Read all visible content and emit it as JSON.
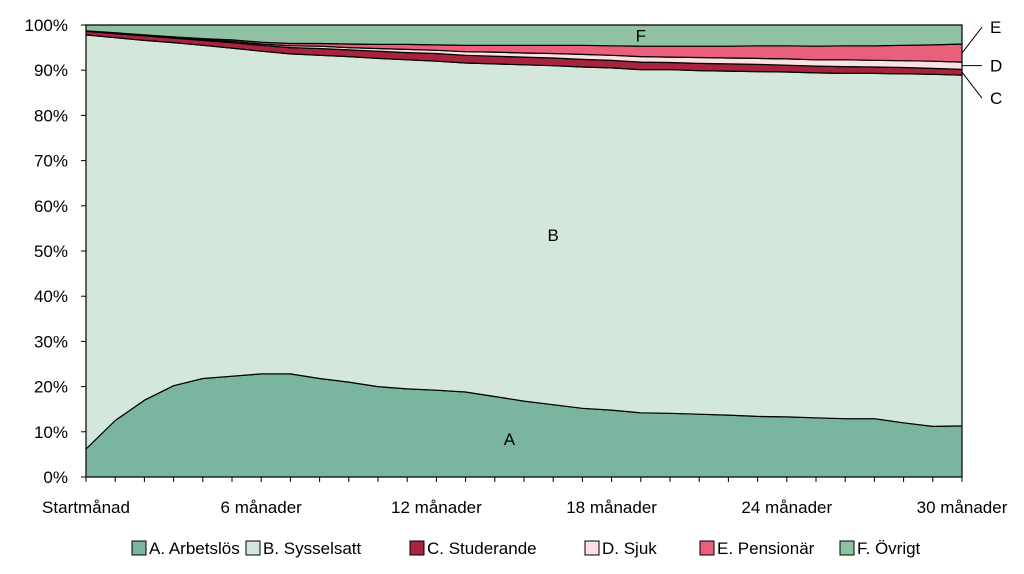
{
  "chart_data": {
    "type": "area",
    "stacked": true,
    "percent": true,
    "title": "",
    "xlabel": "",
    "ylabel": "",
    "ylim": [
      0,
      100
    ],
    "y_ticks": [
      "0%",
      "10%",
      "20%",
      "30%",
      "40%",
      "50%",
      "60%",
      "70%",
      "80%",
      "90%",
      "100%"
    ],
    "x": [
      0,
      1,
      2,
      3,
      4,
      5,
      6,
      7,
      8,
      9,
      10,
      11,
      12,
      13,
      14,
      15,
      16,
      17,
      18,
      19,
      20,
      21,
      22,
      23,
      24,
      25,
      26,
      27,
      28,
      29,
      30
    ],
    "x_tick_labels": [
      {
        "x": 0,
        "label": "Startmånad"
      },
      {
        "x": 6,
        "label": "6 månader"
      },
      {
        "x": 12,
        "label": "12 månader"
      },
      {
        "x": 18,
        "label": "18 månader"
      },
      {
        "x": 24,
        "label": "24 månader"
      },
      {
        "x": 30,
        "label": "30 månader"
      }
    ],
    "grid": false,
    "legend_position": "bottom",
    "series": [
      {
        "name": "A. Arbetslös",
        "short": "A",
        "color": "#7ab5a0",
        "values": [
          6.2,
          12.5,
          17.0,
          20.2,
          21.8,
          22.3,
          22.8,
          22.8,
          21.8,
          21.0,
          20.0,
          19.5,
          19.2,
          18.8,
          17.8,
          16.8,
          16.0,
          15.2,
          14.8,
          14.2,
          14.1,
          13.9,
          13.7,
          13.4,
          13.3,
          13.1,
          12.9,
          12.9,
          12.0,
          11.2,
          11.3
        ]
      },
      {
        "name": "B. Sysselsatt",
        "short": "B",
        "color": "#d4e7dc",
        "values": [
          91.6,
          84.7,
          79.6,
          75.9,
          73.7,
          72.6,
          71.4,
          70.8,
          71.5,
          72.0,
          72.6,
          72.8,
          72.8,
          72.8,
          73.6,
          74.4,
          75.0,
          75.5,
          75.7,
          75.9,
          76.0,
          76.0,
          76.1,
          76.3,
          76.3,
          76.3,
          76.4,
          76.4,
          77.2,
          77.9,
          77.6
        ]
      },
      {
        "name": "C. Studerande",
        "short": "C",
        "color": "#a6243d",
        "values": [
          0.8,
          0.9,
          1.0,
          1.0,
          1.1,
          1.2,
          1.3,
          1.4,
          1.5,
          1.5,
          1.6,
          1.6,
          1.7,
          1.7,
          1.7,
          1.7,
          1.7,
          1.7,
          1.7,
          1.7,
          1.6,
          1.6,
          1.6,
          1.6,
          1.5,
          1.5,
          1.5,
          1.4,
          1.4,
          1.3,
          1.3
        ]
      },
      {
        "name": "D. Sjuk",
        "short": "D",
        "color": "#fbe0e4",
        "values": [
          0.1,
          0.1,
          0.1,
          0.2,
          0.2,
          0.3,
          0.3,
          0.4,
          0.5,
          0.5,
          0.6,
          0.7,
          0.7,
          0.8,
          0.9,
          0.9,
          1.0,
          1.1,
          1.1,
          1.2,
          1.2,
          1.3,
          1.3,
          1.3,
          1.4,
          1.4,
          1.5,
          1.5,
          1.5,
          1.6,
          1.6
        ]
      },
      {
        "name": "E. Pensionär",
        "short": "E",
        "color": "#e8607c",
        "values": [
          0.0,
          0.1,
          0.1,
          0.1,
          0.2,
          0.3,
          0.4,
          0.5,
          0.6,
          0.8,
          0.9,
          1.1,
          1.2,
          1.4,
          1.5,
          1.7,
          1.8,
          2.0,
          2.1,
          2.3,
          2.4,
          2.5,
          2.6,
          2.8,
          2.9,
          3.0,
          3.1,
          3.2,
          3.4,
          3.6,
          4.0
        ]
      },
      {
        "name": "F. Övrigt",
        "short": "F",
        "color": "#8fc1a2",
        "values": [
          1.3,
          1.7,
          2.2,
          2.6,
          3.0,
          3.3,
          3.8,
          4.1,
          4.1,
          4.2,
          4.3,
          4.3,
          4.4,
          4.5,
          4.5,
          4.5,
          4.5,
          4.5,
          4.6,
          4.7,
          4.7,
          4.7,
          4.7,
          4.6,
          4.6,
          4.7,
          4.6,
          4.6,
          4.5,
          4.4,
          4.2
        ]
      }
    ]
  }
}
